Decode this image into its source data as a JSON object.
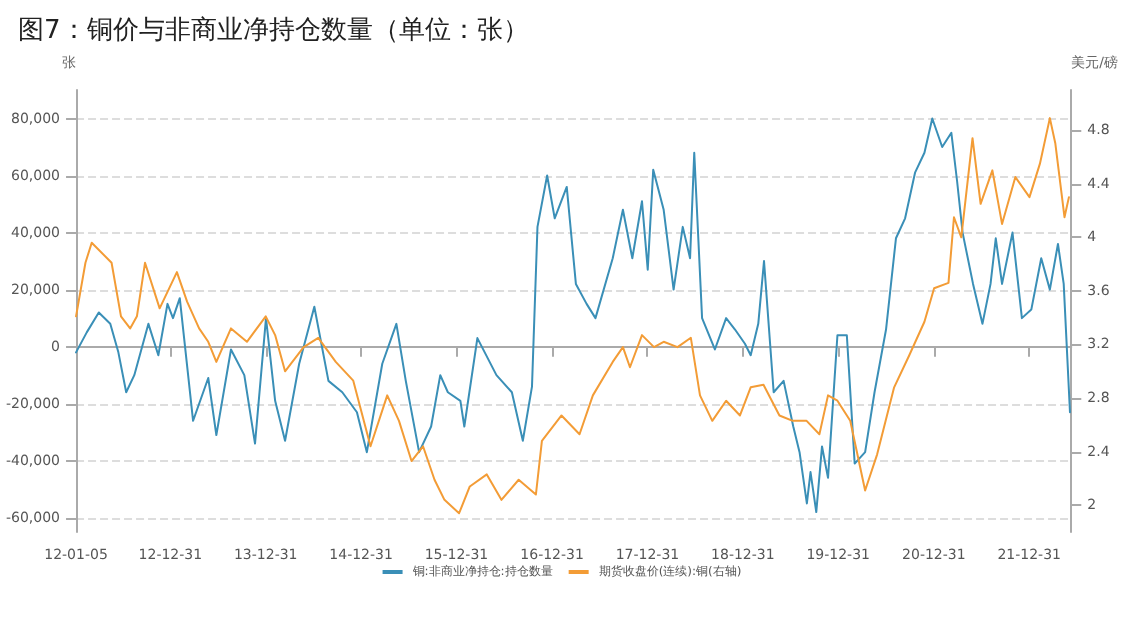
{
  "chart_data": {
    "type": "line",
    "title": "图7：铜价与非商业净持仓数量（单位：张）",
    "ylabel": "张",
    "y2label": "美元/磅",
    "xlim": [
      "2012-01-05",
      "2022-06-10"
    ],
    "xticks": [
      {
        "value": "2012-01-05",
        "label": "12-01-05"
      },
      {
        "value": "2012-12-31",
        "label": "12-12-31"
      },
      {
        "value": "2013-12-31",
        "label": "13-12-31"
      },
      {
        "value": "2014-12-31",
        "label": "14-12-31"
      },
      {
        "value": "2015-12-31",
        "label": "15-12-31"
      },
      {
        "value": "2016-12-31",
        "label": "16-12-31"
      },
      {
        "value": "2017-12-31",
        "label": "17-12-31"
      },
      {
        "value": "2018-12-31",
        "label": "18-12-31"
      },
      {
        "value": "2019-12-31",
        "label": "19-12-31"
      },
      {
        "value": "2020-12-31",
        "label": "20-12-31"
      },
      {
        "value": "2021-12-31",
        "label": "21-12-31"
      }
    ],
    "ylim": [
      -65000,
      90000
    ],
    "yticks": [
      {
        "value": -60000,
        "label": "-60,000"
      },
      {
        "value": -40000,
        "label": "-40,000"
      },
      {
        "value": -20000,
        "label": "-20,000"
      },
      0,
      {
        "value": 20000,
        "label": "20,000"
      },
      {
        "value": 40000,
        "label": "40,000"
      },
      {
        "value": 60000,
        "label": "60,000"
      },
      {
        "value": 80000,
        "label": "80,000"
      }
    ],
    "y2lim": [
      1.8,
      5.1
    ],
    "y2ticks": [
      2,
      2.4,
      2.8,
      3.2,
      3.6,
      4,
      4.4,
      4.8
    ],
    "grid": "y",
    "legend": "bottom",
    "marker": "none",
    "line_style": "solid",
    "series": [
      {
        "name": "铜:非商业净持仓:持仓数量",
        "color": "#3a8fb7",
        "x": [
          "2012-01-05",
          "2012-02-15",
          "2012-04-01",
          "2012-05-15",
          "2012-06-15",
          "2012-07-15",
          "2012-08-15",
          "2012-10-08",
          "2012-11-15",
          "2012-12-20",
          "2013-01-10",
          "2013-02-05",
          "2013-03-28",
          "2013-05-25",
          "2013-06-25",
          "2013-08-20",
          "2013-10-10",
          "2013-11-20",
          "2014-01-01",
          "2014-02-05",
          "2014-03-15",
          "2014-05-08",
          "2014-07-05",
          "2014-08-28",
          "2014-10-20",
          "2014-12-15",
          "2015-01-22",
          "2015-03-22",
          "2015-05-15",
          "2015-06-20",
          "2015-08-10",
          "2015-09-25",
          "2015-10-30",
          "2015-11-28",
          "2016-01-15",
          "2016-01-30",
          "2016-03-20",
          "2016-06-01",
          "2016-07-30",
          "2016-09-10",
          "2016-10-15",
          "2016-11-05",
          "2016-12-12",
          "2017-01-10",
          "2017-02-25",
          "2017-04-01",
          "2017-05-12",
          "2017-06-15",
          "2017-08-20",
          "2017-09-28",
          "2017-11-03",
          "2017-12-10",
          "2018-01-01",
          "2018-01-22",
          "2018-03-03",
          "2018-04-10",
          "2018-05-15",
          "2018-06-12",
          "2018-06-28",
          "2018-07-28",
          "2018-09-15",
          "2018-10-28",
          "2018-12-01",
          "2019-01-08",
          "2019-01-30",
          "2019-02-28",
          "2019-03-22",
          "2019-04-28",
          "2019-06-05",
          "2019-07-12",
          "2019-08-05",
          "2019-09-02",
          "2019-09-16",
          "2019-10-08",
          "2019-10-30",
          "2019-11-22",
          "2019-12-28",
          "2020-02-02",
          "2020-03-03",
          "2020-04-12",
          "2020-05-18",
          "2020-07-01",
          "2020-08-08",
          "2020-09-12",
          "2020-10-20",
          "2020-11-25",
          "2020-12-25",
          "2021-02-01",
          "2021-03-08",
          "2021-03-30",
          "2021-04-20",
          "2021-05-30",
          "2021-07-05",
          "2021-08-05",
          "2021-08-25",
          "2021-09-18",
          "2021-10-28",
          "2021-12-03",
          "2022-01-08",
          "2022-02-15",
          "2022-03-20",
          "2022-04-20",
          "2022-05-12",
          "2022-06-05"
        ],
        "values": [
          -2000,
          5000,
          12000,
          8000,
          -2000,
          -16000,
          -10000,
          8000,
          -3000,
          15000,
          10000,
          17000,
          -26000,
          -11000,
          -31000,
          -1000,
          -10000,
          -34000,
          10000,
          -19000,
          -33000,
          -6000,
          14000,
          -12000,
          -16000,
          -23000,
          -37000,
          -6000,
          8000,
          -12000,
          -37000,
          -28000,
          -10000,
          -16000,
          -19000,
          -28000,
          3000,
          -10000,
          -16000,
          -33000,
          -14000,
          42000,
          60000,
          45000,
          56000,
          22000,
          15000,
          10000,
          31000,
          48000,
          31000,
          51000,
          27000,
          62000,
          48000,
          20000,
          42000,
          31000,
          68000,
          10000,
          -1000,
          10000,
          6000,
          1000,
          -3000,
          8000,
          30000,
          -16000,
          -12000,
          -28000,
          -37000,
          -55000,
          -44000,
          -58000,
          -35000,
          -46000,
          4000,
          4000,
          -41000,
          -37000,
          -16000,
          6000,
          38000,
          45000,
          61000,
          68000,
          80000,
          70000,
          75000,
          58000,
          40000,
          22000,
          8000,
          22000,
          38000,
          22000,
          40000,
          10000,
          13000,
          31000,
          20000,
          36000,
          22000,
          -23000
        ]
      },
      {
        "name": "期货收盘价(连续):铜(右轴)",
        "color": "#f39c36",
        "axis": "y2",
        "x": [
          "2012-01-05",
          "2012-02-10",
          "2012-03-05",
          "2012-05-20",
          "2012-06-25",
          "2012-07-30",
          "2012-08-25",
          "2012-09-25",
          "2012-11-20",
          "2013-01-25",
          "2013-03-05",
          "2013-04-20",
          "2013-05-25",
          "2013-06-25",
          "2013-08-20",
          "2013-10-20",
          "2013-12-31",
          "2014-02-05",
          "2014-03-15",
          "2014-05-25",
          "2014-07-20",
          "2014-09-25",
          "2014-12-01",
          "2015-02-05",
          "2015-04-10",
          "2015-05-25",
          "2015-07-12",
          "2015-08-25",
          "2015-10-08",
          "2015-11-15",
          "2016-01-10",
          "2016-02-20",
          "2016-04-25",
          "2016-06-20",
          "2016-08-25",
          "2016-10-30",
          "2016-11-22",
          "2017-02-05",
          "2017-04-15",
          "2017-06-05",
          "2017-08-20",
          "2017-09-28",
          "2017-10-25",
          "2017-12-10",
          "2018-01-25",
          "2018-03-03",
          "2018-04-25",
          "2018-06-15",
          "2018-07-20",
          "2018-09-05",
          "2018-10-28",
          "2018-12-20",
          "2019-01-30",
          "2019-03-20",
          "2019-05-20",
          "2019-07-10",
          "2019-09-01",
          "2019-10-20",
          "2019-11-22",
          "2019-12-28",
          "2020-02-15",
          "2020-04-12",
          "2020-05-28",
          "2020-08-01",
          "2020-09-28",
          "2020-11-25",
          "2021-01-01",
          "2021-02-25",
          "2021-03-18",
          "2021-04-15",
          "2021-05-28",
          "2021-06-28",
          "2021-08-12",
          "2021-09-18",
          "2021-11-08",
          "2022-01-01",
          "2022-02-10",
          "2022-03-20",
          "2022-04-10",
          "2022-05-15",
          "2022-06-01"
        ],
        "values": [
          3.41,
          3.81,
          3.96,
          3.81,
          3.41,
          3.32,
          3.41,
          3.81,
          3.47,
          3.74,
          3.52,
          3.32,
          3.22,
          3.07,
          3.32,
          3.22,
          3.41,
          3.27,
          3.0,
          3.18,
          3.25,
          3.07,
          2.93,
          2.44,
          2.82,
          2.63,
          2.33,
          2.44,
          2.19,
          2.04,
          1.94,
          2.14,
          2.23,
          2.04,
          2.19,
          2.08,
          2.48,
          2.67,
          2.53,
          2.82,
          3.07,
          3.18,
          3.03,
          3.27,
          3.18,
          3.22,
          3.18,
          3.25,
          2.82,
          2.63,
          2.78,
          2.67,
          2.88,
          2.9,
          2.67,
          2.63,
          2.63,
          2.53,
          2.82,
          2.78,
          2.63,
          2.11,
          2.38,
          2.88,
          3.12,
          3.37,
          3.62,
          3.66,
          4.15,
          4.0,
          4.74,
          4.25,
          4.5,
          4.1,
          4.45,
          4.3,
          4.55,
          4.89,
          4.7,
          4.15,
          4.3
        ]
      }
    ]
  }
}
